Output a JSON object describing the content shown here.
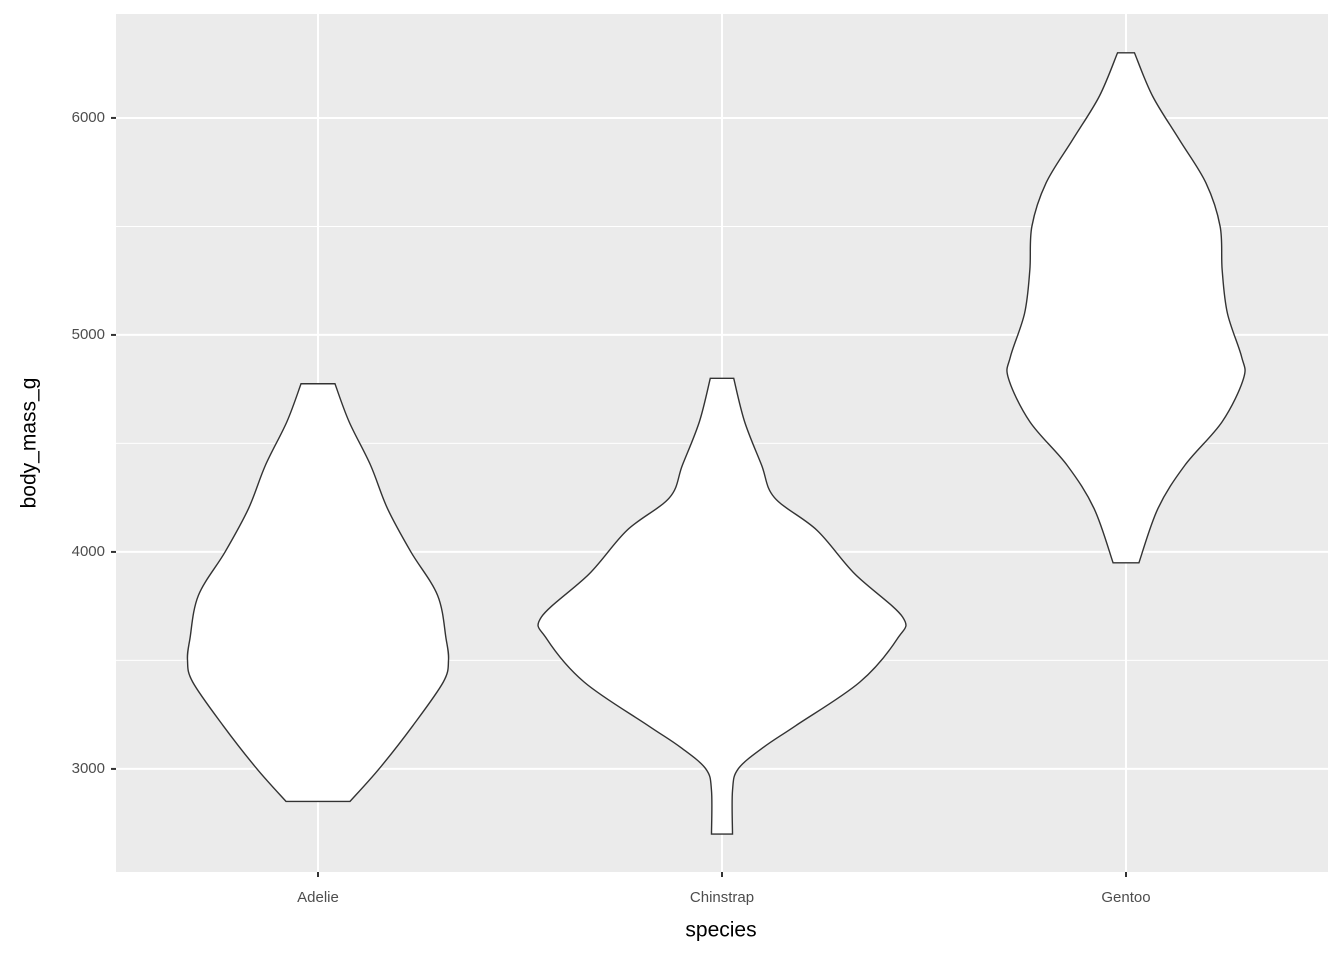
{
  "chart_data": {
    "type": "violin",
    "x_label": "species",
    "y_label": "body_mass_g",
    "categories": [
      "Adelie",
      "Chinstrap",
      "Gentoo"
    ],
    "violins": [
      {
        "y": [
          4775,
          4600,
          4400,
          4200,
          4000,
          3800,
          3600,
          3500,
          3400,
          3200,
          3000,
          2850
        ],
        "width": [
          0.042,
          0.077,
          0.13,
          0.172,
          0.23,
          0.296,
          0.317,
          0.323,
          0.31,
          0.235,
          0.151,
          0.079
        ]
      },
      {
        "y": [
          4800,
          4600,
          4400,
          4250,
          4100,
          3900,
          3700,
          3600,
          3400,
          3200,
          3100,
          3000,
          2900,
          2700
        ],
        "width": [
          0.029,
          0.056,
          0.098,
          0.13,
          0.235,
          0.328,
          0.447,
          0.434,
          0.341,
          0.183,
          0.103,
          0.04,
          0.026,
          0.026
        ]
      },
      {
        "y": [
          6300,
          6100,
          5900,
          5700,
          5500,
          5300,
          5100,
          4900,
          4800,
          4600,
          4400,
          4200,
          3950
        ],
        "width": [
          0.021,
          0.066,
          0.132,
          0.198,
          0.233,
          0.238,
          0.251,
          0.286,
          0.291,
          0.238,
          0.146,
          0.079,
          0.032
        ]
      }
    ],
    "ylim": [
      2525,
      6479
    ],
    "yticks": [
      3000,
      4000,
      5000,
      6000
    ],
    "minor_yticks": [
      3500,
      4500,
      5500
    ],
    "grid": true,
    "fill": "#ffffff",
    "edge": "#333333",
    "background": "#ebebeb"
  }
}
